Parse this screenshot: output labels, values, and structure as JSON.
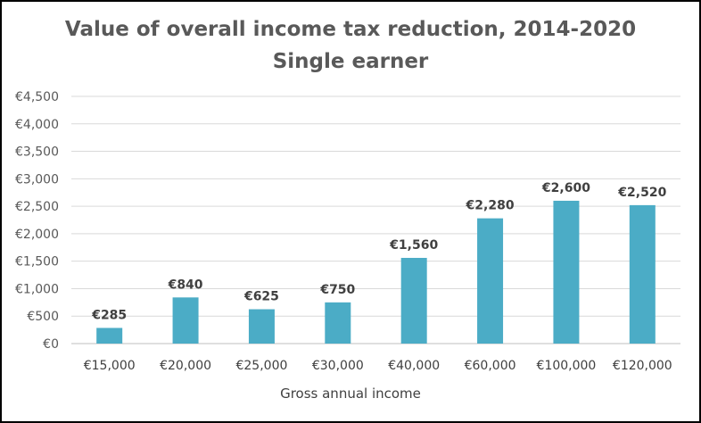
{
  "chart_data": {
    "type": "bar",
    "title": "Value of overall income tax reduction, 2014-2020",
    "subtitle": "Single earner",
    "xlabel": "Gross annual income",
    "ylabel": "",
    "categories": [
      "€15,000",
      "€20,000",
      "€25,000",
      "€30,000",
      "€40,000",
      "€60,000",
      "€100,000",
      "€120,000"
    ],
    "values": [
      285,
      840,
      625,
      750,
      1560,
      2280,
      2600,
      2520
    ],
    "data_labels": [
      "€285",
      "€840",
      "€625",
      "€750",
      "€1,560",
      "€2,280",
      "€2,600",
      "€2,520"
    ],
    "ylim": [
      0,
      4500
    ],
    "yticks": [
      0,
      500,
      1000,
      1500,
      2000,
      2500,
      3000,
      3500,
      4000,
      4500
    ],
    "ytick_labels": [
      "€0",
      "€500",
      "€1,000",
      "€1,500",
      "€2,000",
      "€2,500",
      "€3,000",
      "€3,500",
      "€4,000",
      "€4,500"
    ],
    "grid": true,
    "legend": "none",
    "colors": {
      "bar": "#4BACC6",
      "grid": "#D9D9D9",
      "axis": "#BFBFBF"
    }
  }
}
